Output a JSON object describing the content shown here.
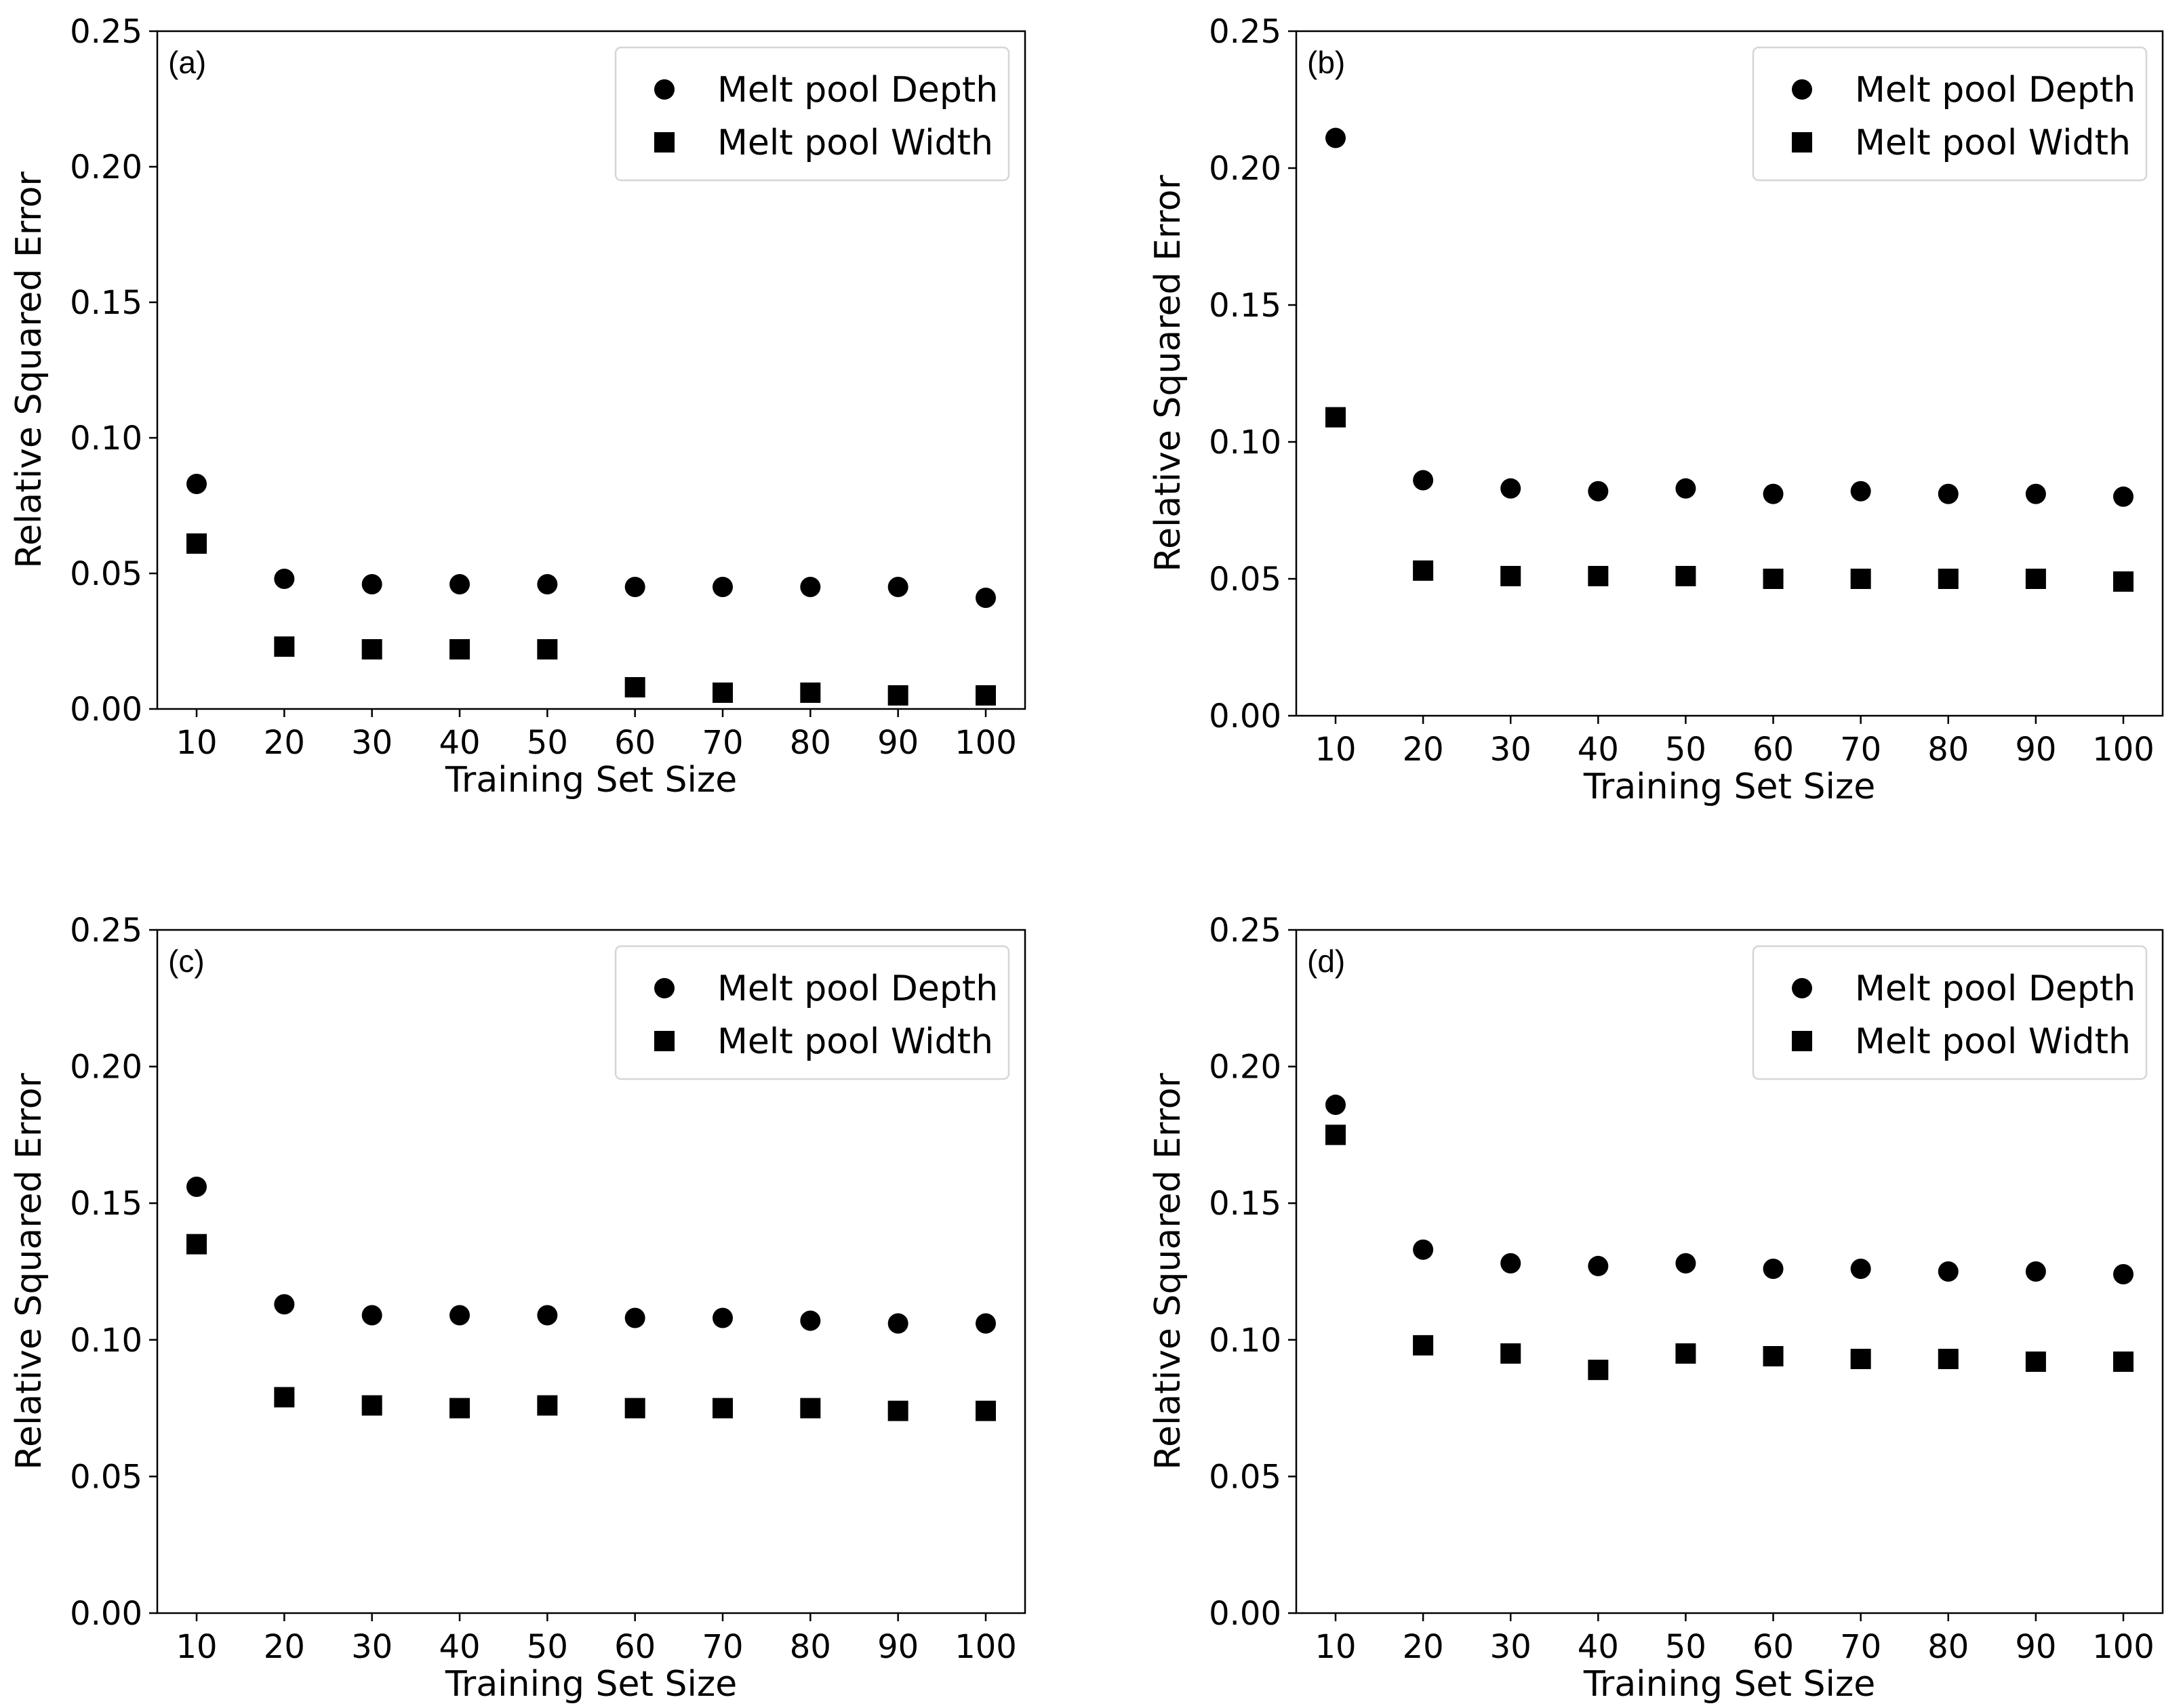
{
  "chart_data": [
    {
      "panel_label": "(a)",
      "type": "scatter",
      "xlabel": "Training Set Size",
      "ylabel": "Relative Squared Error",
      "x": [
        10,
        20,
        30,
        40,
        50,
        60,
        70,
        80,
        90,
        100
      ],
      "ylim": [
        0,
        0.25
      ],
      "yticks": [
        "0.00",
        "0.05",
        "0.10",
        "0.15",
        "0.20",
        "0.25"
      ],
      "yticks_values": [
        0,
        0.05,
        0.1,
        0.15,
        0.2,
        0.25
      ],
      "legend_position": "top-right",
      "series": [
        {
          "name": "Melt pool Depth",
          "marker": "circle",
          "values": [
            0.083,
            0.048,
            0.046,
            0.046,
            0.046,
            0.045,
            0.045,
            0.045,
            0.045,
            0.041
          ]
        },
        {
          "name": "Melt pool Width",
          "marker": "square",
          "values": [
            0.061,
            0.023,
            0.022,
            0.022,
            0.022,
            0.008,
            0.006,
            0.006,
            0.005,
            0.005
          ]
        }
      ]
    },
    {
      "panel_label": "(b)",
      "type": "scatter",
      "xlabel": "Training Set Size",
      "ylabel": "Relative Squared Error",
      "x": [
        10,
        20,
        30,
        40,
        50,
        60,
        70,
        80,
        90,
        100
      ],
      "ylim": [
        0,
        0.25
      ],
      "yticks": [
        "0.00",
        "0.05",
        "0.10",
        "0.15",
        "0.20",
        "0.25"
      ],
      "yticks_values": [
        0,
        0.05,
        0.1,
        0.15,
        0.2,
        0.25
      ],
      "legend_position": "top-right",
      "series": [
        {
          "name": "Melt pool Depth",
          "marker": "circle",
          "values": [
            0.211,
            0.086,
            0.083,
            0.082,
            0.083,
            0.081,
            0.082,
            0.081,
            0.081,
            0.08
          ]
        },
        {
          "name": "Melt pool Width",
          "marker": "square",
          "values": [
            0.109,
            0.053,
            0.051,
            0.051,
            0.051,
            0.05,
            0.05,
            0.05,
            0.05,
            0.049
          ]
        }
      ]
    },
    {
      "panel_label": "(c)",
      "type": "scatter",
      "xlabel": "Training Set Size",
      "ylabel": "Relative Squared Error",
      "x": [
        10,
        20,
        30,
        40,
        50,
        60,
        70,
        80,
        90,
        100
      ],
      "ylim": [
        0,
        0.25
      ],
      "yticks": [
        "0.00",
        "0.05",
        "0.10",
        "0.15",
        "0.20",
        "0.25"
      ],
      "yticks_values": [
        0,
        0.05,
        0.1,
        0.15,
        0.2,
        0.25
      ],
      "legend_position": "top-right",
      "series": [
        {
          "name": "Melt pool Depth",
          "marker": "circle",
          "values": [
            0.156,
            0.113,
            0.109,
            0.109,
            0.109,
            0.108,
            0.108,
            0.107,
            0.106,
            0.106
          ]
        },
        {
          "name": "Melt pool Width",
          "marker": "square",
          "values": [
            0.135,
            0.079,
            0.076,
            0.075,
            0.076,
            0.075,
            0.075,
            0.075,
            0.074,
            0.074
          ]
        }
      ]
    },
    {
      "panel_label": "(d)",
      "type": "scatter",
      "xlabel": "Training Set Size",
      "ylabel": "Relative Squared Error",
      "x": [
        10,
        20,
        30,
        40,
        50,
        60,
        70,
        80,
        90,
        100
      ],
      "ylim": [
        0,
        0.25
      ],
      "yticks": [
        "0.00",
        "0.05",
        "0.10",
        "0.15",
        "0.20",
        "0.25"
      ],
      "yticks_values": [
        0,
        0.05,
        0.1,
        0.15,
        0.2,
        0.25
      ],
      "legend_position": "top-right",
      "series": [
        {
          "name": "Melt pool Depth",
          "marker": "circle",
          "values": [
            0.186,
            0.133,
            0.128,
            0.127,
            0.128,
            0.126,
            0.126,
            0.125,
            0.125,
            0.124
          ]
        },
        {
          "name": "Melt pool Width",
          "marker": "square",
          "values": [
            0.175,
            0.098,
            0.095,
            0.089,
            0.095,
            0.094,
            0.093,
            0.093,
            0.092,
            0.092
          ]
        }
      ]
    }
  ]
}
